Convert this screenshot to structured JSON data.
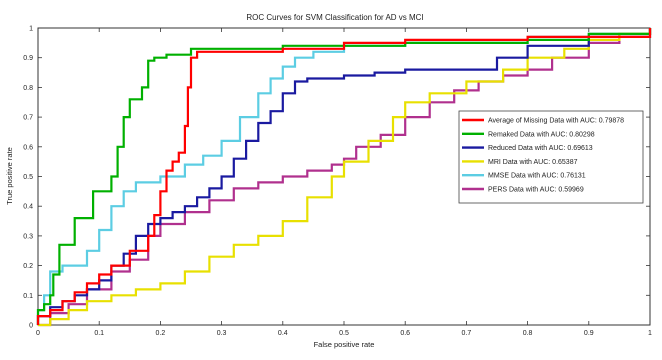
{
  "chart_data": {
    "type": "line",
    "title": "ROC Curves for SVM Classification for AD vs MCI",
    "xlabel": "False positive rate",
    "ylabel": "True positive rate",
    "xlim": [
      0,
      1
    ],
    "ylim": [
      0,
      1
    ],
    "xticks": [
      "0",
      "0.1",
      "0.2",
      "0.3",
      "0.4",
      "0.5",
      "0.6",
      "0.7",
      "0.8",
      "0.9",
      "1"
    ],
    "yticks": [
      "0",
      "0.1",
      "0.2",
      "0.3",
      "0.4",
      "0.5",
      "0.6",
      "0.7",
      "0.8",
      "0.9",
      "1"
    ],
    "grid": false,
    "legend_position": "right-middle",
    "series": [
      {
        "name": "Average of Missing Data with AUC: 0.79878",
        "color": "#ff0000",
        "points": [
          [
            0,
            0
          ],
          [
            0,
            0.03
          ],
          [
            0.02,
            0.05
          ],
          [
            0.04,
            0.08
          ],
          [
            0.06,
            0.11
          ],
          [
            0.08,
            0.14
          ],
          [
            0.1,
            0.17
          ],
          [
            0.12,
            0.2
          ],
          [
            0.15,
            0.25
          ],
          [
            0.18,
            0.3
          ],
          [
            0.19,
            0.37
          ],
          [
            0.2,
            0.45
          ],
          [
            0.21,
            0.52
          ],
          [
            0.22,
            0.55
          ],
          [
            0.23,
            0.58
          ],
          [
            0.24,
            0.67
          ],
          [
            0.245,
            0.8
          ],
          [
            0.25,
            0.9
          ],
          [
            0.26,
            0.92
          ],
          [
            0.4,
            0.93
          ],
          [
            0.5,
            0.95
          ],
          [
            0.6,
            0.96
          ],
          [
            0.8,
            0.97
          ],
          [
            1,
            1
          ]
        ]
      },
      {
        "name": "Remaked Data with AUC: 0.80298",
        "color": "#00b000",
        "points": [
          [
            0,
            0
          ],
          [
            0,
            0.05
          ],
          [
            0.01,
            0.07
          ],
          [
            0.02,
            0.1
          ],
          [
            0.025,
            0.17
          ],
          [
            0.035,
            0.27
          ],
          [
            0.06,
            0.36
          ],
          [
            0.09,
            0.45
          ],
          [
            0.12,
            0.5
          ],
          [
            0.13,
            0.6
          ],
          [
            0.14,
            0.7
          ],
          [
            0.15,
            0.76
          ],
          [
            0.17,
            0.8
          ],
          [
            0.18,
            0.89
          ],
          [
            0.19,
            0.9
          ],
          [
            0.21,
            0.91
          ],
          [
            0.25,
            0.93
          ],
          [
            0.4,
            0.94
          ],
          [
            0.6,
            0.95
          ],
          [
            0.8,
            0.96
          ],
          [
            0.9,
            0.98
          ],
          [
            1,
            1
          ]
        ]
      },
      {
        "name": "Reduced Data with AUC: 0.69613",
        "color": "#1a1aa0",
        "points": [
          [
            0,
            0
          ],
          [
            0,
            0.03
          ],
          [
            0.02,
            0.06
          ],
          [
            0.04,
            0.08
          ],
          [
            0.06,
            0.1
          ],
          [
            0.08,
            0.12
          ],
          [
            0.1,
            0.15
          ],
          [
            0.12,
            0.2
          ],
          [
            0.14,
            0.24
          ],
          [
            0.16,
            0.3
          ],
          [
            0.18,
            0.34
          ],
          [
            0.2,
            0.36
          ],
          [
            0.22,
            0.38
          ],
          [
            0.24,
            0.4
          ],
          [
            0.26,
            0.43
          ],
          [
            0.28,
            0.46
          ],
          [
            0.3,
            0.5
          ],
          [
            0.32,
            0.56
          ],
          [
            0.34,
            0.62
          ],
          [
            0.36,
            0.68
          ],
          [
            0.38,
            0.72
          ],
          [
            0.4,
            0.78
          ],
          [
            0.42,
            0.82
          ],
          [
            0.44,
            0.83
          ],
          [
            0.5,
            0.84
          ],
          [
            0.55,
            0.85
          ],
          [
            0.6,
            0.86
          ],
          [
            0.7,
            0.86
          ],
          [
            0.75,
            0.9
          ],
          [
            0.8,
            0.94
          ],
          [
            0.9,
            0.97
          ],
          [
            1,
            1
          ]
        ]
      },
      {
        "name": "MRI Data with AUC: 0.65387",
        "color": "#e8e000",
        "points": [
          [
            0,
            0
          ],
          [
            0.02,
            0.02
          ],
          [
            0.05,
            0.05
          ],
          [
            0.08,
            0.08
          ],
          [
            0.12,
            0.1
          ],
          [
            0.16,
            0.12
          ],
          [
            0.2,
            0.14
          ],
          [
            0.24,
            0.18
          ],
          [
            0.28,
            0.23
          ],
          [
            0.32,
            0.27
          ],
          [
            0.36,
            0.3
          ],
          [
            0.4,
            0.35
          ],
          [
            0.44,
            0.43
          ],
          [
            0.48,
            0.5
          ],
          [
            0.5,
            0.55
          ],
          [
            0.54,
            0.62
          ],
          [
            0.58,
            0.7
          ],
          [
            0.6,
            0.75
          ],
          [
            0.64,
            0.78
          ],
          [
            0.7,
            0.82
          ],
          [
            0.76,
            0.86
          ],
          [
            0.8,
            0.9
          ],
          [
            0.86,
            0.93
          ],
          [
            0.9,
            0.96
          ],
          [
            0.95,
            0.98
          ],
          [
            1,
            1
          ]
        ]
      },
      {
        "name": "MMSE Data with AUC: 0.76131",
        "color": "#5ccde3",
        "points": [
          [
            0,
            0
          ],
          [
            0,
            0.05
          ],
          [
            0.01,
            0.1
          ],
          [
            0.02,
            0.18
          ],
          [
            0.04,
            0.2
          ],
          [
            0.08,
            0.25
          ],
          [
            0.1,
            0.32
          ],
          [
            0.12,
            0.4
          ],
          [
            0.14,
            0.45
          ],
          [
            0.16,
            0.48
          ],
          [
            0.2,
            0.5
          ],
          [
            0.24,
            0.54
          ],
          [
            0.27,
            0.57
          ],
          [
            0.3,
            0.62
          ],
          [
            0.33,
            0.7
          ],
          [
            0.36,
            0.78
          ],
          [
            0.38,
            0.83
          ],
          [
            0.4,
            0.87
          ],
          [
            0.42,
            0.9
          ],
          [
            0.45,
            0.92
          ],
          [
            0.5,
            0.94
          ],
          [
            0.6,
            0.95
          ],
          [
            0.8,
            0.97
          ],
          [
            0.9,
            0.98
          ],
          [
            1,
            1
          ]
        ]
      },
      {
        "name": "PERS Data with AUC: 0.59969",
        "color": "#b0308e",
        "points": [
          [
            0,
            0
          ],
          [
            0.02,
            0.04
          ],
          [
            0.05,
            0.07
          ],
          [
            0.08,
            0.12
          ],
          [
            0.12,
            0.18
          ],
          [
            0.15,
            0.22
          ],
          [
            0.18,
            0.3
          ],
          [
            0.2,
            0.34
          ],
          [
            0.24,
            0.38
          ],
          [
            0.28,
            0.42
          ],
          [
            0.32,
            0.46
          ],
          [
            0.36,
            0.48
          ],
          [
            0.4,
            0.5
          ],
          [
            0.44,
            0.52
          ],
          [
            0.48,
            0.54
          ],
          [
            0.5,
            0.56
          ],
          [
            0.52,
            0.6
          ],
          [
            0.56,
            0.64
          ],
          [
            0.6,
            0.7
          ],
          [
            0.64,
            0.75
          ],
          [
            0.68,
            0.79
          ],
          [
            0.72,
            0.82
          ],
          [
            0.76,
            0.84
          ],
          [
            0.8,
            0.86
          ],
          [
            0.84,
            0.9
          ],
          [
            0.9,
            0.95
          ],
          [
            0.95,
            0.98
          ],
          [
            1,
            1
          ]
        ]
      }
    ]
  }
}
